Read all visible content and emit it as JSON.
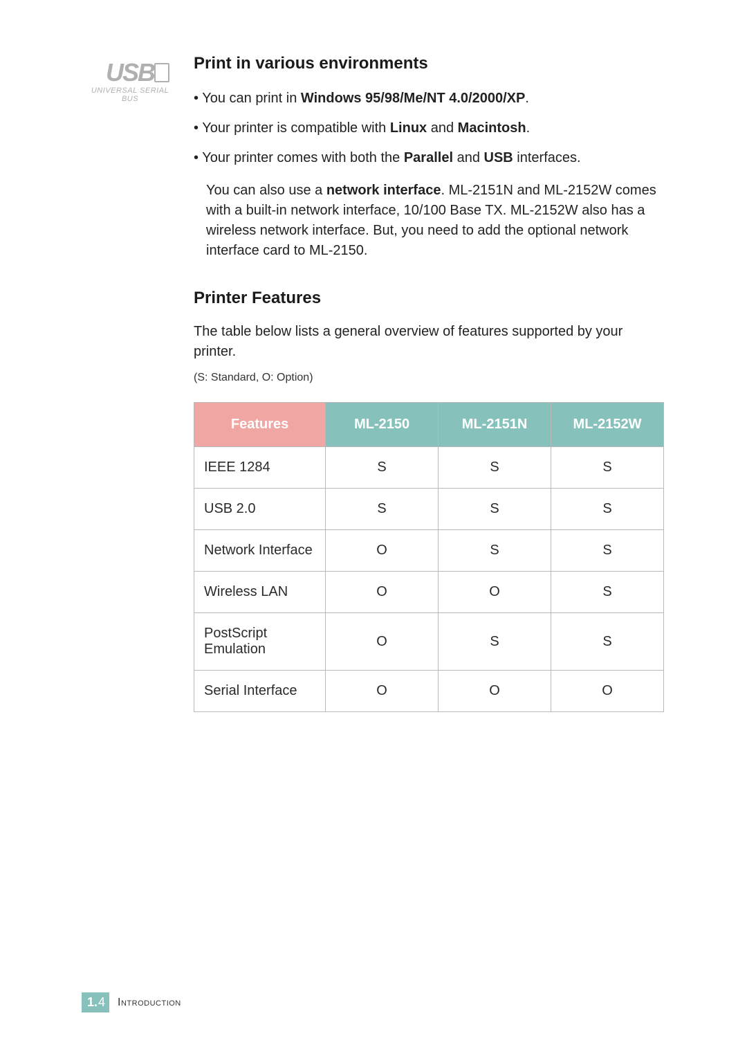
{
  "logo": {
    "name": "USB",
    "sub": "UNIVERSAL SERIAL BUS"
  },
  "section1": {
    "title": "Print in various environments",
    "bullets": [
      {
        "pre": "You can print in ",
        "bold": "Windows 95/98/Me/NT 4.0/2000/XP",
        "post": "."
      },
      {
        "pre": "Your printer is compatible with ",
        "bold": "Linux",
        "mid": " and ",
        "bold2": "Macintosh",
        "post": "."
      },
      {
        "pre": "Your printer comes with both the ",
        "bold": "Parallel",
        "mid": " and ",
        "bold2": "USB",
        "post": " interfaces."
      }
    ],
    "extra": {
      "pre": "You can also use a ",
      "bold": "network interface",
      "post": ". ML-2151N and ML-2152W comes with a built-in network interface, 10/100 Base TX. ML-2152W also has a wireless network interface. But, you need to add the optional network interface card to ML-2150."
    }
  },
  "section2": {
    "title": "Printer Features",
    "lead": "The table below lists a general overview of features supported by your printer.",
    "legend": "(S: Standard, O: Option)"
  },
  "table": {
    "header_feat_color": "#f0a7a4",
    "header_model_color": "#86c2bb",
    "header_text_color": "#ffffff",
    "border_color": "#b8b8b8",
    "columns": [
      "Features",
      "ML-2150",
      "ML-2151N",
      "ML-2152W"
    ],
    "rows": [
      [
        "IEEE 1284",
        "S",
        "S",
        "S"
      ],
      [
        "USB 2.0",
        "S",
        "S",
        "S"
      ],
      [
        "Network Interface",
        "O",
        "S",
        "S"
      ],
      [
        "Wireless LAN",
        "O",
        "O",
        "S"
      ],
      [
        "PostScript Emulation",
        "O",
        "S",
        "S"
      ],
      [
        "Serial Interface",
        "O",
        "O",
        "O"
      ]
    ]
  },
  "footer": {
    "chapter_num": "1.",
    "page_num": "4",
    "chapter_name": "Introduction",
    "box_bg": "#86c2bb"
  }
}
